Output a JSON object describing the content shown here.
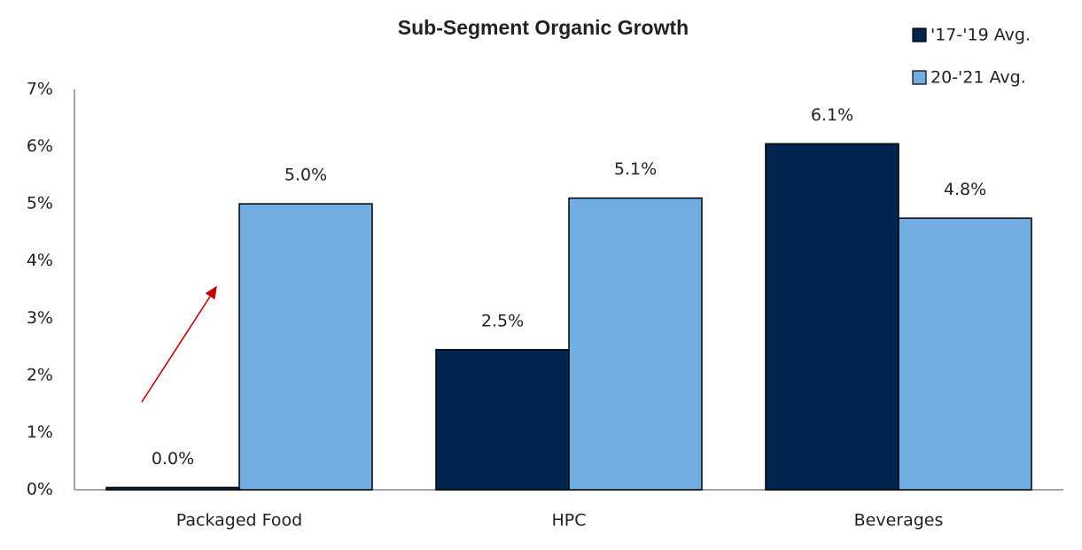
{
  "chart_data": {
    "type": "bar",
    "title": "Sub-Segment Organic Growth",
    "categories": [
      "Packaged Food",
      "HPC",
      "Beverages"
    ],
    "series": [
      {
        "name": "'17-'19 Avg.",
        "color": "#002650",
        "values": [
          0.04,
          2.45,
          6.05
        ],
        "value_labels": [
          "0.0%",
          "2.5%",
          "6.1%"
        ]
      },
      {
        "name": "20-'21 Avg.",
        "color": "#72ade2",
        "values": [
          5.0,
          5.1,
          4.75
        ],
        "value_labels": [
          "5.0%",
          "5.1%",
          "4.8%"
        ]
      }
    ],
    "ylim": [
      0,
      7
    ],
    "yticks": [
      {
        "value": 0,
        "label": "0%"
      },
      {
        "value": 1,
        "label": "1%"
      },
      {
        "value": 2,
        "label": "2%"
      },
      {
        "value": 3,
        "label": "3%"
      },
      {
        "value": 4,
        "label": "4%"
      },
      {
        "value": 5,
        "label": "5%"
      },
      {
        "value": 6,
        "label": "6%"
      },
      {
        "value": 7,
        "label": "7%"
      }
    ],
    "grid": false,
    "legend": "top-right"
  }
}
